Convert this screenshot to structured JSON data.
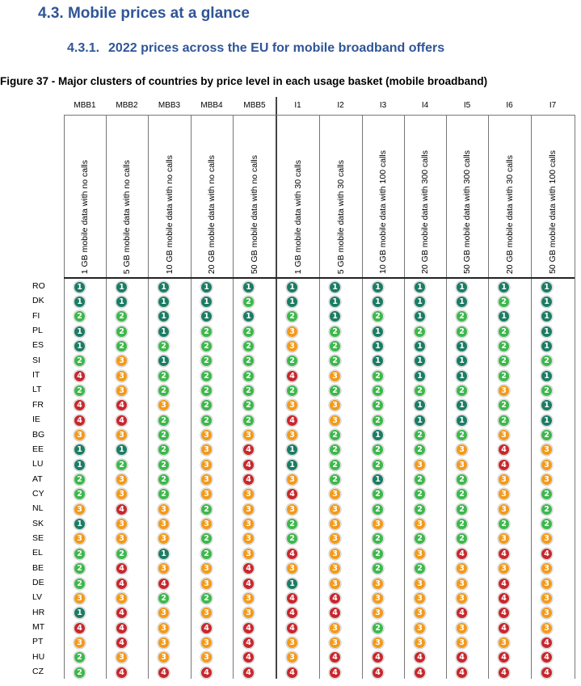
{
  "section_heading": "4.3. Mobile prices at a glance",
  "subsection_number": "4.3.1.",
  "subsection_title": "2022 prices across the EU for mobile broadband offers",
  "figure_caption": "Figure 37 - Major clusters of countries by price level in each usage basket (mobile broadband)",
  "colors": {
    "1": "#1b7c64",
    "2": "#3db84c",
    "3": "#f39a1a",
    "4": "#c8272d"
  },
  "columns": [
    {
      "code": "MBB1",
      "desc": "1 GB mobile data with no calls"
    },
    {
      "code": "MBB2",
      "desc": "5 GB mobile data with no calls"
    },
    {
      "code": "MBB3",
      "desc": "10 GB mobile data with no calls"
    },
    {
      "code": "MBB4",
      "desc": "20 GB mobile data with no calls"
    },
    {
      "code": "MBB5",
      "desc": "50 GB mobile data with no calls"
    },
    {
      "code": "I1",
      "desc": "1 GB mobile data with 30 calls"
    },
    {
      "code": "I2",
      "desc": "5 GB mobile data with 30 calls"
    },
    {
      "code": "I3",
      "desc": "10 GB mobile data with 100 calls"
    },
    {
      "code": "I4",
      "desc": "20 GB mobile data with 300 calls"
    },
    {
      "code": "I5",
      "desc": "50 GB mobile data with 300 calls"
    },
    {
      "code": "I6",
      "desc": "20 GB mobile data with 30 calls"
    },
    {
      "code": "I7",
      "desc": "50 GB mobile data with 100 calls"
    }
  ],
  "rows": [
    {
      "country": "RO",
      "values": [
        1,
        1,
        1,
        1,
        1,
        1,
        1,
        1,
        1,
        1,
        1,
        1
      ]
    },
    {
      "country": "DK",
      "values": [
        1,
        1,
        1,
        1,
        2,
        1,
        1,
        1,
        1,
        1,
        2,
        1
      ]
    },
    {
      "country": "FI",
      "values": [
        2,
        2,
        1,
        1,
        1,
        2,
        1,
        2,
        1,
        2,
        1,
        1
      ]
    },
    {
      "country": "PL",
      "values": [
        1,
        2,
        1,
        2,
        2,
        3,
        2,
        1,
        2,
        2,
        2,
        1
      ]
    },
    {
      "country": "ES",
      "values": [
        1,
        2,
        2,
        2,
        2,
        3,
        2,
        1,
        1,
        1,
        2,
        1
      ]
    },
    {
      "country": "SI",
      "values": [
        2,
        3,
        1,
        2,
        2,
        2,
        2,
        1,
        1,
        1,
        2,
        2
      ]
    },
    {
      "country": "IT",
      "values": [
        4,
        3,
        2,
        2,
        2,
        4,
        3,
        2,
        1,
        1,
        2,
        1
      ]
    },
    {
      "country": "LT",
      "values": [
        2,
        3,
        2,
        2,
        2,
        2,
        2,
        2,
        2,
        2,
        3,
        2
      ]
    },
    {
      "country": "FR",
      "values": [
        4,
        4,
        3,
        2,
        2,
        3,
        3,
        2,
        1,
        1,
        2,
        1
      ]
    },
    {
      "country": "IE",
      "values": [
        4,
        4,
        2,
        2,
        2,
        4,
        3,
        2,
        1,
        1,
        2,
        1
      ]
    },
    {
      "country": "BG",
      "values": [
        3,
        3,
        2,
        3,
        3,
        3,
        2,
        1,
        2,
        2,
        3,
        2
      ]
    },
    {
      "country": "EE",
      "values": [
        1,
        1,
        2,
        3,
        4,
        1,
        2,
        2,
        2,
        3,
        4,
        3
      ]
    },
    {
      "country": "LU",
      "values": [
        1,
        2,
        2,
        3,
        4,
        1,
        2,
        2,
        3,
        3,
        4,
        3
      ]
    },
    {
      "country": "AT",
      "values": [
        2,
        3,
        2,
        3,
        4,
        3,
        2,
        1,
        2,
        2,
        3,
        3
      ]
    },
    {
      "country": "CY",
      "values": [
        2,
        3,
        2,
        3,
        3,
        4,
        3,
        2,
        2,
        2,
        3,
        2
      ]
    },
    {
      "country": "NL",
      "values": [
        3,
        4,
        3,
        2,
        3,
        3,
        3,
        2,
        2,
        2,
        3,
        2
      ]
    },
    {
      "country": "SK",
      "values": [
        1,
        3,
        3,
        3,
        3,
        2,
        3,
        3,
        3,
        2,
        2,
        2
      ]
    },
    {
      "country": "SE",
      "values": [
        3,
        3,
        3,
        2,
        3,
        2,
        3,
        2,
        2,
        2,
        3,
        3
      ]
    },
    {
      "country": "EL",
      "values": [
        2,
        2,
        1,
        2,
        3,
        4,
        3,
        2,
        3,
        4,
        4,
        4
      ]
    },
    {
      "country": "BE",
      "values": [
        2,
        4,
        3,
        3,
        4,
        3,
        3,
        2,
        2,
        3,
        3,
        3
      ]
    },
    {
      "country": "DE",
      "values": [
        2,
        4,
        4,
        3,
        4,
        1,
        3,
        3,
        3,
        3,
        4,
        3
      ]
    },
    {
      "country": "LV",
      "values": [
        3,
        3,
        2,
        2,
        3,
        4,
        4,
        3,
        3,
        3,
        4,
        3
      ]
    },
    {
      "country": "HR",
      "values": [
        1,
        4,
        3,
        3,
        3,
        4,
        4,
        3,
        3,
        4,
        4,
        3
      ]
    },
    {
      "country": "MT",
      "values": [
        4,
        4,
        3,
        4,
        4,
        4,
        3,
        2,
        3,
        3,
        4,
        3
      ]
    },
    {
      "country": "PT",
      "values": [
        3,
        4,
        3,
        3,
        4,
        3,
        3,
        3,
        3,
        3,
        3,
        4
      ]
    },
    {
      "country": "HU",
      "values": [
        2,
        3,
        3,
        3,
        4,
        3,
        4,
        4,
        4,
        4,
        4,
        4
      ]
    },
    {
      "country": "CZ",
      "values": [
        2,
        4,
        4,
        4,
        4,
        4,
        4,
        4,
        4,
        4,
        4,
        4
      ]
    }
  ]
}
